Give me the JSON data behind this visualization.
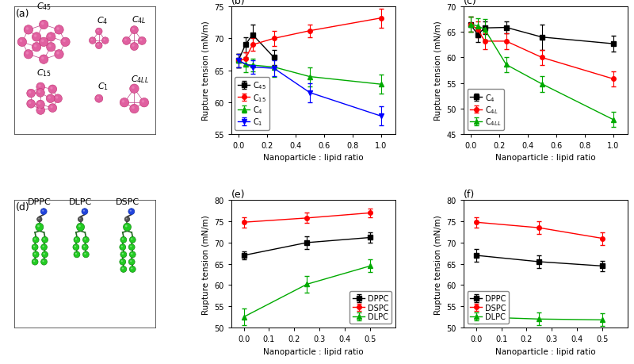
{
  "panel_b": {
    "title": "(b)",
    "xlabel": "Nanoparticle : lipid ratio",
    "ylabel": "Rupture tension (mN/m)",
    "ylim": [
      55,
      75
    ],
    "yticks": [
      55,
      60,
      65,
      70,
      75
    ],
    "xlim": [
      -0.05,
      1.1
    ],
    "xticks": [
      0.0,
      0.2,
      0.4,
      0.6,
      0.8,
      1.0
    ],
    "series": {
      "C45": {
        "x": [
          0.0,
          0.05,
          0.1,
          0.25
        ],
        "y": [
          66.5,
          69.0,
          70.6,
          67.0
        ],
        "yerr": [
          1.0,
          1.2,
          1.5,
          1.2
        ],
        "color": "#000000",
        "marker": "s",
        "label": "C$_{45}$"
      },
      "C15": {
        "x": [
          0.0,
          0.05,
          0.1,
          0.25,
          0.5,
          1.0
        ],
        "y": [
          66.5,
          66.8,
          69.0,
          70.0,
          71.2,
          73.2
        ],
        "yerr": [
          1.0,
          1.0,
          1.0,
          1.2,
          1.0,
          1.5
        ],
        "color": "#ff0000",
        "marker": "o",
        "label": "C$_{15}$"
      },
      "C4": {
        "x": [
          0.0,
          0.05,
          0.1,
          0.25,
          0.5,
          1.0
        ],
        "y": [
          66.5,
          65.9,
          65.8,
          65.5,
          64.0,
          62.8
        ],
        "yerr": [
          1.0,
          1.2,
          1.0,
          1.5,
          1.5,
          1.5
        ],
        "color": "#00aa00",
        "marker": "^",
        "label": "C$_{4}$"
      },
      "C1": {
        "x": [
          0.0,
          0.1,
          0.25,
          0.5,
          1.0
        ],
        "y": [
          66.5,
          65.5,
          65.3,
          61.5,
          57.8
        ],
        "yerr": [
          1.0,
          1.0,
          1.2,
          1.5,
          1.5
        ],
        "color": "#0000ff",
        "marker": "v",
        "label": "C$_{1}$"
      }
    }
  },
  "panel_c": {
    "title": "(c)",
    "xlabel": "Nanoparticle : lipid ratio",
    "ylabel": "Rupture tension (mN/m)",
    "ylim": [
      45,
      70
    ],
    "yticks": [
      45,
      50,
      55,
      60,
      65,
      70
    ],
    "xlim": [
      -0.05,
      1.1
    ],
    "xticks": [
      0.0,
      0.2,
      0.4,
      0.6,
      0.8,
      1.0
    ],
    "series": {
      "C4": {
        "x": [
          0.0,
          0.05,
          0.1,
          0.25,
          0.5,
          1.0
        ],
        "y": [
          66.5,
          64.5,
          65.8,
          65.9,
          64.0,
          62.7
        ],
        "yerr": [
          1.5,
          1.5,
          1.2,
          1.2,
          2.5,
          1.5
        ],
        "color": "#000000",
        "marker": "s",
        "label": "C$_{4}$"
      },
      "C4L": {
        "x": [
          0.0,
          0.05,
          0.1,
          0.25,
          0.5,
          1.0
        ],
        "y": [
          66.5,
          65.5,
          63.2,
          63.2,
          60.0,
          55.8
        ],
        "yerr": [
          1.5,
          1.5,
          1.5,
          1.5,
          1.5,
          1.5
        ],
        "color": "#ff0000",
        "marker": "o",
        "label": "C$_{4L}$"
      },
      "C4LL": {
        "x": [
          0.0,
          0.05,
          0.1,
          0.25,
          0.5,
          1.0
        ],
        "y": [
          66.5,
          66.2,
          65.5,
          58.6,
          54.8,
          47.8
        ],
        "yerr": [
          1.5,
          1.5,
          2.0,
          1.5,
          1.5,
          1.5
        ],
        "color": "#00aa00",
        "marker": "^",
        "label": "C$_{4LL}$"
      }
    }
  },
  "panel_e": {
    "title": "(e)",
    "xlabel": "Nanoparticle : lipid ratio",
    "ylabel": "Rupture tension (mN/m)",
    "ylim": [
      50,
      80
    ],
    "yticks": [
      50,
      55,
      60,
      65,
      70,
      75,
      80
    ],
    "xlim": [
      -0.05,
      0.6
    ],
    "xticks": [
      0.0,
      0.1,
      0.2,
      0.3,
      0.4,
      0.5
    ],
    "series": {
      "DPPC": {
        "x": [
          0.0,
          0.25,
          0.5
        ],
        "y": [
          67.0,
          70.0,
          71.2
        ],
        "yerr": [
          1.0,
          1.5,
          1.2
        ],
        "color": "#000000",
        "marker": "s",
        "label": "DPPC"
      },
      "DSPC": {
        "x": [
          0.0,
          0.25,
          0.5
        ],
        "y": [
          74.8,
          75.8,
          77.0
        ],
        "yerr": [
          1.2,
          1.2,
          1.0
        ],
        "color": "#ff0000",
        "marker": "o",
        "label": "DSPC"
      },
      "DLPC": {
        "x": [
          0.0,
          0.25,
          0.5
        ],
        "y": [
          52.5,
          60.2,
          64.5
        ],
        "yerr": [
          2.0,
          2.0,
          1.5
        ],
        "color": "#00aa00",
        "marker": "^",
        "label": "DLPC"
      }
    }
  },
  "panel_f": {
    "title": "(f)",
    "xlabel": "Nanoparticle : lipid ratio",
    "ylabel": "Rupture tension (mN/m)",
    "ylim": [
      50,
      80
    ],
    "yticks": [
      50,
      55,
      60,
      65,
      70,
      75,
      80
    ],
    "xlim": [
      -0.05,
      0.6
    ],
    "xticks": [
      0.0,
      0.1,
      0.2,
      0.3,
      0.4,
      0.5
    ],
    "series": {
      "DPPC": {
        "x": [
          0.0,
          0.25,
          0.5
        ],
        "y": [
          67.0,
          65.5,
          64.5
        ],
        "yerr": [
          1.5,
          1.5,
          1.2
        ],
        "color": "#000000",
        "marker": "s",
        "label": "DPPC"
      },
      "DSPC": {
        "x": [
          0.0,
          0.25,
          0.5
        ],
        "y": [
          74.8,
          73.5,
          71.0
        ],
        "yerr": [
          1.2,
          1.5,
          1.5
        ],
        "color": "#ff0000",
        "marker": "o",
        "label": "DSPC"
      },
      "DLPC": {
        "x": [
          0.0,
          0.25,
          0.5
        ],
        "y": [
          52.5,
          52.0,
          51.8
        ],
        "yerr": [
          1.5,
          1.5,
          1.5
        ],
        "color": "#00aa00",
        "marker": "^",
        "label": "DLPC"
      }
    }
  }
}
